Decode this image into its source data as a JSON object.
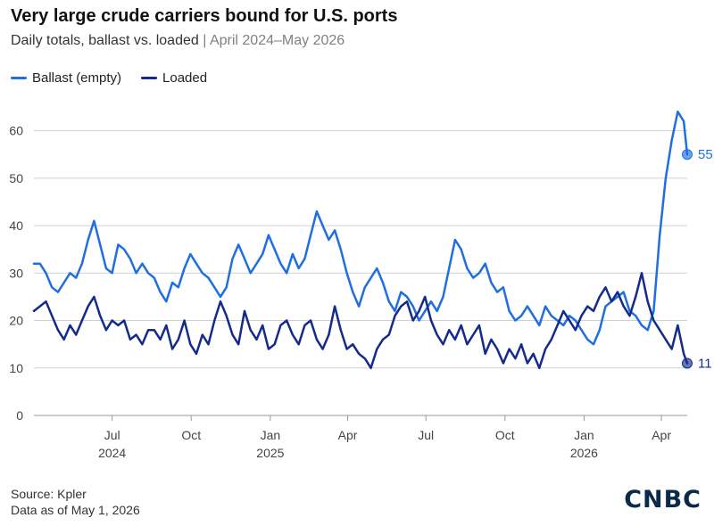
{
  "title": "Very large crude carriers bound for U.S. ports",
  "subtitle": {
    "main": "Daily totals, ballast vs. loaded",
    "separator": "|",
    "range": "April 2024–May 2026"
  },
  "footer": {
    "source": "Source: Kpler",
    "asof": "Data as of May 1, 2026"
  },
  "logo": "CNBC",
  "colors": {
    "ballast": "#1f6fe0",
    "loaded": "#142b8c",
    "grid": "#d0d0d0",
    "axis": "#999999"
  },
  "chart_data": {
    "type": "line",
    "title": "Very large crude carriers bound for U.S. ports",
    "subtitle": "Daily totals, ballast vs. loaded | April 2024–May 2026",
    "ylim": [
      0,
      65
    ],
    "xlim": [
      "2024-04-01",
      "2026-05-01"
    ],
    "yticks": [
      0,
      10,
      20,
      30,
      40,
      50,
      60
    ],
    "xticks": [
      {
        "date": "2024-07-01",
        "label": "Jul",
        "year": "2024"
      },
      {
        "date": "2024-10-01",
        "label": "Oct",
        "year": ""
      },
      {
        "date": "2025-01-01",
        "label": "Jan",
        "year": "2025"
      },
      {
        "date": "2025-04-01",
        "label": "Apr",
        "year": ""
      },
      {
        "date": "2025-07-01",
        "label": "Jul",
        "year": ""
      },
      {
        "date": "2025-10-01",
        "label": "Oct",
        "year": ""
      },
      {
        "date": "2026-01-01",
        "label": "Jan",
        "year": "2026"
      },
      {
        "date": "2026-04-01",
        "label": "Apr",
        "year": ""
      }
    ],
    "grid": true,
    "legend_position": "top-left",
    "series": [
      {
        "name": "Ballast (empty)",
        "color": "#1f6fe0",
        "end_label": "55",
        "points": [
          [
            "2024-04-01",
            32
          ],
          [
            "2024-04-08",
            32
          ],
          [
            "2024-04-15",
            30
          ],
          [
            "2024-04-22",
            27
          ],
          [
            "2024-04-29",
            26
          ],
          [
            "2024-05-06",
            28
          ],
          [
            "2024-05-13",
            30
          ],
          [
            "2024-05-20",
            29
          ],
          [
            "2024-05-27",
            32
          ],
          [
            "2024-06-03",
            37
          ],
          [
            "2024-06-10",
            41
          ],
          [
            "2024-06-17",
            36
          ],
          [
            "2024-06-24",
            31
          ],
          [
            "2024-07-01",
            30
          ],
          [
            "2024-07-08",
            36
          ],
          [
            "2024-07-15",
            35
          ],
          [
            "2024-07-22",
            33
          ],
          [
            "2024-07-29",
            30
          ],
          [
            "2024-08-05",
            32
          ],
          [
            "2024-08-12",
            30
          ],
          [
            "2024-08-19",
            29
          ],
          [
            "2024-08-26",
            26
          ],
          [
            "2024-09-02",
            24
          ],
          [
            "2024-09-09",
            28
          ],
          [
            "2024-09-16",
            27
          ],
          [
            "2024-09-23",
            31
          ],
          [
            "2024-09-30",
            34
          ],
          [
            "2024-10-07",
            32
          ],
          [
            "2024-10-14",
            30
          ],
          [
            "2024-10-21",
            29
          ],
          [
            "2024-10-28",
            27
          ],
          [
            "2024-11-04",
            25
          ],
          [
            "2024-11-11",
            27
          ],
          [
            "2024-11-18",
            33
          ],
          [
            "2024-11-25",
            36
          ],
          [
            "2024-12-02",
            33
          ],
          [
            "2024-12-09",
            30
          ],
          [
            "2024-12-16",
            32
          ],
          [
            "2024-12-23",
            34
          ],
          [
            "2024-12-30",
            38
          ],
          [
            "2025-01-06",
            35
          ],
          [
            "2025-01-13",
            32
          ],
          [
            "2025-01-20",
            30
          ],
          [
            "2025-01-27",
            34
          ],
          [
            "2025-02-03",
            31
          ],
          [
            "2025-02-10",
            33
          ],
          [
            "2025-02-17",
            38
          ],
          [
            "2025-02-24",
            43
          ],
          [
            "2025-03-03",
            40
          ],
          [
            "2025-03-10",
            37
          ],
          [
            "2025-03-17",
            39
          ],
          [
            "2025-03-24",
            35
          ],
          [
            "2025-03-31",
            30
          ],
          [
            "2025-04-07",
            26
          ],
          [
            "2025-04-14",
            23
          ],
          [
            "2025-04-21",
            27
          ],
          [
            "2025-04-28",
            29
          ],
          [
            "2025-05-05",
            31
          ],
          [
            "2025-05-12",
            28
          ],
          [
            "2025-05-19",
            24
          ],
          [
            "2025-05-26",
            22
          ],
          [
            "2025-06-02",
            26
          ],
          [
            "2025-06-09",
            25
          ],
          [
            "2025-06-16",
            23
          ],
          [
            "2025-06-23",
            20
          ],
          [
            "2025-06-30",
            22
          ],
          [
            "2025-07-07",
            24
          ],
          [
            "2025-07-14",
            22
          ],
          [
            "2025-07-21",
            25
          ],
          [
            "2025-07-28",
            31
          ],
          [
            "2025-08-04",
            37
          ],
          [
            "2025-08-11",
            35
          ],
          [
            "2025-08-18",
            31
          ],
          [
            "2025-08-25",
            29
          ],
          [
            "2025-09-01",
            30
          ],
          [
            "2025-09-08",
            32
          ],
          [
            "2025-09-15",
            28
          ],
          [
            "2025-09-22",
            26
          ],
          [
            "2025-09-29",
            27
          ],
          [
            "2025-10-06",
            22
          ],
          [
            "2025-10-13",
            20
          ],
          [
            "2025-10-20",
            21
          ],
          [
            "2025-10-27",
            23
          ],
          [
            "2025-11-03",
            21
          ],
          [
            "2025-11-10",
            19
          ],
          [
            "2025-11-17",
            23
          ],
          [
            "2025-11-24",
            21
          ],
          [
            "2025-12-01",
            20
          ],
          [
            "2025-12-08",
            19
          ],
          [
            "2025-12-15",
            21
          ],
          [
            "2025-12-22",
            20
          ],
          [
            "2025-12-29",
            18
          ],
          [
            "2026-01-05",
            16
          ],
          [
            "2026-01-12",
            15
          ],
          [
            "2026-01-19",
            18
          ],
          [
            "2026-01-26",
            23
          ],
          [
            "2026-02-02",
            24
          ],
          [
            "2026-02-09",
            25
          ],
          [
            "2026-02-16",
            26
          ],
          [
            "2026-02-23",
            22
          ],
          [
            "2026-03-02",
            21
          ],
          [
            "2026-03-09",
            19
          ],
          [
            "2026-03-16",
            18
          ],
          [
            "2026-03-23",
            22
          ],
          [
            "2026-03-30",
            38
          ],
          [
            "2026-04-06",
            50
          ],
          [
            "2026-04-13",
            58
          ],
          [
            "2026-04-20",
            64
          ],
          [
            "2026-04-27",
            62
          ],
          [
            "2026-05-01",
            55
          ]
        ]
      },
      {
        "name": "Loaded",
        "color": "#142b8c",
        "end_label": "11",
        "points": [
          [
            "2024-04-01",
            22
          ],
          [
            "2024-04-08",
            23
          ],
          [
            "2024-04-15",
            24
          ],
          [
            "2024-04-22",
            21
          ],
          [
            "2024-04-29",
            18
          ],
          [
            "2024-05-06",
            16
          ],
          [
            "2024-05-13",
            19
          ],
          [
            "2024-05-20",
            17
          ],
          [
            "2024-05-27",
            20
          ],
          [
            "2024-06-03",
            23
          ],
          [
            "2024-06-10",
            25
          ],
          [
            "2024-06-17",
            21
          ],
          [
            "2024-06-24",
            18
          ],
          [
            "2024-07-01",
            20
          ],
          [
            "2024-07-08",
            19
          ],
          [
            "2024-07-15",
            20
          ],
          [
            "2024-07-22",
            16
          ],
          [
            "2024-07-29",
            17
          ],
          [
            "2024-08-05",
            15
          ],
          [
            "2024-08-12",
            18
          ],
          [
            "2024-08-19",
            18
          ],
          [
            "2024-08-26",
            16
          ],
          [
            "2024-09-02",
            19
          ],
          [
            "2024-09-09",
            14
          ],
          [
            "2024-09-16",
            16
          ],
          [
            "2024-09-23",
            20
          ],
          [
            "2024-09-30",
            15
          ],
          [
            "2024-10-07",
            13
          ],
          [
            "2024-10-14",
            17
          ],
          [
            "2024-10-21",
            15
          ],
          [
            "2024-10-28",
            20
          ],
          [
            "2024-11-04",
            24
          ],
          [
            "2024-11-11",
            21
          ],
          [
            "2024-11-18",
            17
          ],
          [
            "2024-11-25",
            15
          ],
          [
            "2024-12-02",
            22
          ],
          [
            "2024-12-09",
            18
          ],
          [
            "2024-12-16",
            16
          ],
          [
            "2024-12-23",
            19
          ],
          [
            "2024-12-30",
            14
          ],
          [
            "2025-01-06",
            15
          ],
          [
            "2025-01-13",
            19
          ],
          [
            "2025-01-20",
            20
          ],
          [
            "2025-01-27",
            17
          ],
          [
            "2025-02-03",
            15
          ],
          [
            "2025-02-10",
            19
          ],
          [
            "2025-02-17",
            20
          ],
          [
            "2025-02-24",
            16
          ],
          [
            "2025-03-03",
            14
          ],
          [
            "2025-03-10",
            17
          ],
          [
            "2025-03-17",
            23
          ],
          [
            "2025-03-24",
            18
          ],
          [
            "2025-03-31",
            14
          ],
          [
            "2025-04-07",
            15
          ],
          [
            "2025-04-14",
            13
          ],
          [
            "2025-04-21",
            12
          ],
          [
            "2025-04-28",
            10
          ],
          [
            "2025-05-05",
            14
          ],
          [
            "2025-05-12",
            16
          ],
          [
            "2025-05-19",
            17
          ],
          [
            "2025-05-26",
            21
          ],
          [
            "2025-06-02",
            23
          ],
          [
            "2025-06-09",
            24
          ],
          [
            "2025-06-16",
            20
          ],
          [
            "2025-06-23",
            22
          ],
          [
            "2025-06-30",
            25
          ],
          [
            "2025-07-07",
            20
          ],
          [
            "2025-07-14",
            17
          ],
          [
            "2025-07-21",
            15
          ],
          [
            "2025-07-28",
            18
          ],
          [
            "2025-08-04",
            16
          ],
          [
            "2025-08-11",
            19
          ],
          [
            "2025-08-18",
            15
          ],
          [
            "2025-08-25",
            17
          ],
          [
            "2025-09-01",
            19
          ],
          [
            "2025-09-08",
            13
          ],
          [
            "2025-09-15",
            16
          ],
          [
            "2025-09-22",
            14
          ],
          [
            "2025-09-29",
            11
          ],
          [
            "2025-10-06",
            14
          ],
          [
            "2025-10-13",
            12
          ],
          [
            "2025-10-20",
            15
          ],
          [
            "2025-10-27",
            11
          ],
          [
            "2025-11-03",
            13
          ],
          [
            "2025-11-10",
            10
          ],
          [
            "2025-11-17",
            14
          ],
          [
            "2025-11-24",
            16
          ],
          [
            "2025-12-01",
            19
          ],
          [
            "2025-12-08",
            22
          ],
          [
            "2025-12-15",
            20
          ],
          [
            "2025-12-22",
            18
          ],
          [
            "2025-12-29",
            21
          ],
          [
            "2026-01-05",
            23
          ],
          [
            "2026-01-12",
            22
          ],
          [
            "2026-01-19",
            25
          ],
          [
            "2026-01-26",
            27
          ],
          [
            "2026-02-02",
            24
          ],
          [
            "2026-02-09",
            26
          ],
          [
            "2026-02-16",
            23
          ],
          [
            "2026-02-23",
            21
          ],
          [
            "2026-03-02",
            25
          ],
          [
            "2026-03-09",
            30
          ],
          [
            "2026-03-16",
            24
          ],
          [
            "2026-03-23",
            20
          ],
          [
            "2026-03-30",
            18
          ],
          [
            "2026-04-06",
            16
          ],
          [
            "2026-04-13",
            14
          ],
          [
            "2026-04-20",
            19
          ],
          [
            "2026-04-27",
            13
          ],
          [
            "2026-05-01",
            11
          ]
        ]
      }
    ]
  }
}
